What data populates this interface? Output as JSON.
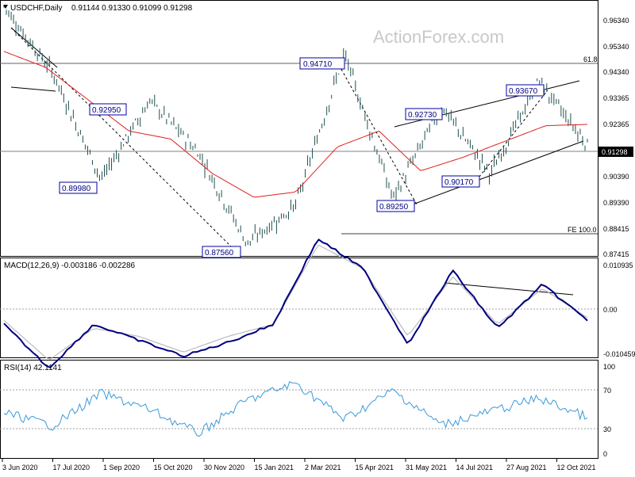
{
  "header": {
    "symbol": "USDCHF,Daily",
    "ohlc": "0.91144 0.91330 0.91099 0.91298"
  },
  "watermark": "ActionForex.com",
  "colors": {
    "candle": "#1f4f4f",
    "ma": "#e02020",
    "macd": "#000080",
    "signal": "#b0b0b0",
    "rsi": "#3a9ad9",
    "annotation_border": "#0000a0",
    "annotation_text": "#000080"
  },
  "price_axis": {
    "ticks": [
      "0.96340",
      "0.95340",
      "0.94340",
      "0.93365",
      "0.92365",
      "0.91298",
      "0.90390",
      "0.89390",
      "0.88415",
      "0.87415"
    ],
    "current_price": "0.91298",
    "range": [
      0.8712,
      0.9662
    ]
  },
  "level_labels": {
    "fib_618": "61.8",
    "fe_100": "FE 100.0"
  },
  "annotations": [
    {
      "text": "0.94710"
    },
    {
      "text": "0.92950"
    },
    {
      "text": "0.89980"
    },
    {
      "text": "0.87560"
    },
    {
      "text": "0.89250"
    },
    {
      "text": "0.92730"
    },
    {
      "text": "0.90170"
    },
    {
      "text": "0.93670"
    }
  ],
  "macd": {
    "label": "MACD(12,26,9) -0.003186 -0.002286",
    "ticks": [
      "0.010935",
      "0.00",
      "-0.010459"
    ],
    "range": [
      -0.0121,
      0.0122
    ]
  },
  "rsi": {
    "label": "RSI(14) 42.1141",
    "ticks": [
      "100",
      "70",
      "30",
      "0"
    ]
  },
  "x_axis": {
    "labels": [
      "3 Jun 2020",
      "17 Jul 2020",
      "1 Sep 2020",
      "15 Oct 2020",
      "30 Nov 2020",
      "15 Jan 2021",
      "2 Mar 2021",
      "15 Apr 2021",
      "31 May 2021",
      "14 Jul 2021",
      "27 Aug 2021",
      "12 Oct 2021"
    ]
  },
  "chart_data": {
    "type": "line",
    "instrument": "USDCHF",
    "timeframe": "Daily",
    "x": [
      "3 Jun 2020",
      "17 Jul 2020",
      "1 Sep 2020",
      "15 Oct 2020",
      "30 Nov 2020",
      "15 Jan 2021",
      "2 Mar 2021",
      "15 Apr 2021",
      "31 May 2021",
      "14 Jul 2021",
      "27 Aug 2021",
      "12 Oct 2021"
    ],
    "price_points": [
      {
        "date": "3 Jun 2020",
        "price": 0.965
      },
      {
        "date": "17 Jul 2020",
        "price": 0.94
      },
      {
        "date": "early Aug 2020",
        "price": 0.8998
      },
      {
        "date": "late Aug 2020",
        "price": 0.9295
      },
      {
        "date": "15 Oct 2020",
        "price": 0.91
      },
      {
        "date": "early Jan 2021",
        "price": 0.8756
      },
      {
        "date": "15 Jan 2021",
        "price": 0.89
      },
      {
        "date": "late Mar 2021",
        "price": 0.9471
      },
      {
        "date": "late May 2021",
        "price": 0.8925
      },
      {
        "date": "mid Jun 2021",
        "price": 0.9273
      },
      {
        "date": "early Aug 2021",
        "price": 0.9017
      },
      {
        "date": "late Sep 2021",
        "price": 0.9367
      },
      {
        "date": "late Oct 2021",
        "price": 0.91298
      }
    ],
    "moving_average": [
      0.948,
      0.942,
      0.93,
      0.918,
      0.915,
      0.902,
      0.893,
      0.895,
      0.912,
      0.918,
      0.903,
      0.908,
      0.914,
      0.92,
      0.9205
    ],
    "macd": {
      "macd_points": [
        -0.004,
        -0.015,
        -0.004,
        -0.008,
        -0.012,
        -0.0085,
        -0.004,
        0.0175,
        0.01,
        -0.009,
        0.0095,
        -0.005,
        0.006,
        -0.003
      ],
      "signal_points": [
        -0.003,
        -0.013,
        -0.005,
        -0.007,
        -0.011,
        -0.007,
        -0.004,
        0.016,
        0.01,
        -0.007,
        0.008,
        -0.004,
        0.005,
        -0.0023
      ],
      "current": {
        "macd": -0.003186,
        "signal": -0.002286
      }
    },
    "rsi": {
      "points": [
        47,
        33,
        67,
        50,
        25,
        60,
        78,
        40,
        70,
        34,
        48,
        62,
        42
      ],
      "current": 42.1141,
      "levels": [
        70,
        30
      ],
      "ylim": [
        0,
        100
      ]
    },
    "ylim": [
      0.8712,
      0.9662
    ]
  }
}
